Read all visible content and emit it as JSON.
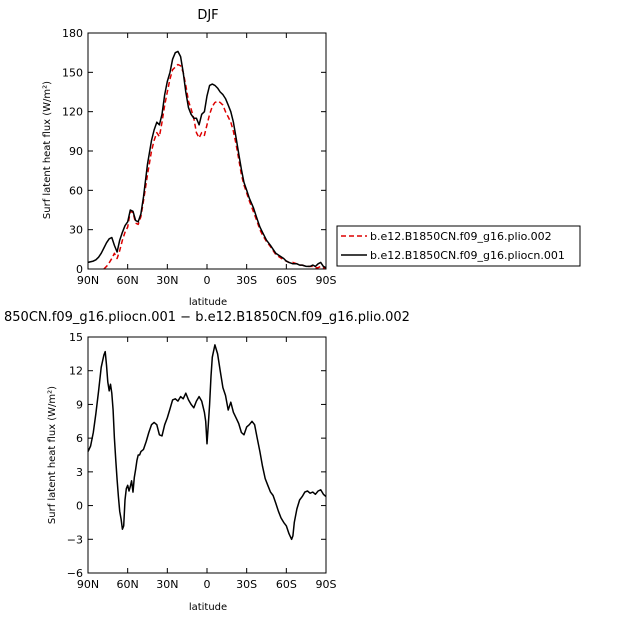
{
  "chart_data": [
    {
      "type": "line",
      "title": "DJF",
      "xlabel": "latitude",
      "ylabel": "Surf latent heat flux (W/m²)",
      "xlim": [
        90,
        -90
      ],
      "ylim": [
        0,
        180
      ],
      "xticks": [
        90,
        60,
        30,
        0,
        -30,
        -60,
        -90
      ],
      "xtick_labels": [
        "90N",
        "60N",
        "30N",
        "0",
        "30S",
        "60S",
        "90S"
      ],
      "yticks": [
        0,
        30,
        60,
        90,
        120,
        150,
        180
      ],
      "ytick_labels": [
        "0",
        "30",
        "60",
        "90",
        "120",
        "150",
        "180"
      ],
      "legend_position": "right",
      "series": [
        {
          "name": "b.e12.B1850CN.f09_g16.plio.002",
          "color": "#dd0000",
          "dash": "dashed",
          "x": [
            78,
            75,
            72,
            70,
            68,
            66,
            64,
            62,
            60,
            58,
            56,
            54,
            52,
            50,
            48,
            45,
            42,
            40,
            38,
            36,
            34,
            32,
            30,
            28,
            26,
            24,
            22,
            20,
            18,
            16,
            14,
            12,
            10,
            8,
            6,
            4,
            2,
            0,
            -2,
            -4,
            -6,
            -8,
            -10,
            -12,
            -14,
            -16,
            -18,
            -20,
            -22,
            -24,
            -26,
            -28,
            -30,
            -32,
            -35,
            -38,
            -40,
            -42,
            -45,
            -48,
            -50,
            -52,
            -55,
            -58,
            -60,
            -62,
            -65,
            -68,
            -70,
            -72,
            -75,
            -78,
            -80,
            -82,
            -84,
            -86,
            -88,
            -90
          ],
          "values": [
            0,
            3,
            8,
            12,
            8,
            14,
            22,
            28,
            32,
            44,
            43,
            35,
            34,
            40,
            52,
            72,
            90,
            98,
            104,
            101,
            112,
            125,
            135,
            145,
            152,
            154,
            156,
            155,
            150,
            140,
            128,
            122,
            115,
            104,
            100,
            104,
            102,
            110,
            118,
            124,
            127,
            128,
            127,
            125,
            120,
            116,
            112,
            105,
            95,
            84,
            72,
            64,
            58,
            52,
            44,
            36,
            30,
            26,
            21,
            17,
            14,
            11,
            9,
            7,
            6,
            5,
            5,
            4,
            3,
            3,
            2,
            2,
            2,
            1,
            1,
            2,
            1,
            0
          ]
        },
        {
          "name": "b.e12.B1850CN.f09_g16.pliocn.001",
          "color": "#000000",
          "dash": "solid",
          "x": [
            90,
            86,
            84,
            82,
            80,
            78,
            76,
            74,
            72,
            70,
            68,
            66,
            64,
            62,
            60,
            58,
            56,
            54,
            52,
            50,
            48,
            45,
            42,
            40,
            38,
            36,
            34,
            32,
            30,
            28,
            26,
            24,
            22,
            20,
            18,
            16,
            14,
            12,
            10,
            8,
            6,
            4,
            2,
            0,
            -2,
            -4,
            -6,
            -8,
            -10,
            -12,
            -14,
            -16,
            -18,
            -20,
            -22,
            -24,
            -26,
            -28,
            -30,
            -32,
            -35,
            -38,
            -40,
            -42,
            -45,
            -48,
            -50,
            -52,
            -55,
            -58,
            -60,
            -62,
            -65,
            -68,
            -70,
            -72,
            -75,
            -78,
            -80,
            -82,
            -84,
            -86,
            -88,
            -90
          ],
          "values": [
            5,
            6,
            7,
            9,
            12,
            16,
            20,
            23,
            24,
            18,
            13,
            22,
            28,
            33,
            36,
            45,
            44,
            37,
            36,
            42,
            55,
            80,
            98,
            106,
            112,
            110,
            118,
            133,
            143,
            150,
            160,
            165,
            166,
            162,
            150,
            135,
            123,
            118,
            115,
            115,
            110,
            118,
            120,
            132,
            140,
            141,
            140,
            138,
            135,
            133,
            130,
            125,
            120,
            112,
            100,
            88,
            76,
            66,
            60,
            54,
            47,
            38,
            32,
            28,
            22,
            18,
            15,
            12,
            10,
            8,
            6,
            5,
            4,
            4,
            3,
            3,
            2,
            2,
            3,
            2,
            4,
            5,
            2,
            1
          ]
        }
      ]
    },
    {
      "type": "line",
      "title": "850CN.f09_g16.pliocn.001 − b.e12.B1850CN.f09_g16.plio.002",
      "xlabel": "latitude",
      "ylabel": "Surf latent heat flux (W/m²)",
      "xlim": [
        90,
        -90
      ],
      "ylim": [
        -6,
        15
      ],
      "xticks": [
        90,
        60,
        30,
        0,
        -30,
        -60,
        -90
      ],
      "xtick_labels": [
        "90N",
        "60N",
        "30N",
        "0",
        "30S",
        "60S",
        "90S"
      ],
      "yticks": [
        -6,
        -3,
        0,
        3,
        6,
        9,
        12,
        15
      ],
      "ytick_labels": [
        "−6",
        "−3",
        "0",
        "3",
        "6",
        "9",
        "12",
        "15"
      ],
      "series": [
        {
          "color": "#000000",
          "dash": "solid",
          "x": [
            90,
            88,
            86,
            84,
            82,
            80,
            78,
            77,
            76,
            75,
            74,
            73,
            72,
            71,
            70,
            69,
            68,
            67,
            66,
            65,
            64,
            63,
            62,
            61,
            60,
            59,
            58,
            57,
            56,
            55,
            54,
            53,
            52,
            51,
            50,
            48,
            46,
            44,
            42,
            40,
            38,
            36,
            34,
            32,
            30,
            28,
            26,
            24,
            22,
            20,
            18,
            16,
            14,
            12,
            10,
            8,
            6,
            4,
            2,
            1,
            0,
            -1,
            -2,
            -3,
            -4,
            -6,
            -8,
            -10,
            -12,
            -14,
            -16,
            -18,
            -20,
            -22,
            -24,
            -26,
            -28,
            -30,
            -32,
            -34,
            -36,
            -38,
            -40,
            -42,
            -44,
            -46,
            -48,
            -50,
            -52,
            -54,
            -56,
            -58,
            -60,
            -62,
            -64,
            -65,
            -66,
            -68,
            -70,
            -72,
            -74,
            -76,
            -78,
            -80,
            -82,
            -84,
            -86,
            -88,
            -90
          ],
          "values": [
            4.8,
            5.3,
            6.5,
            8.2,
            10.2,
            12.3,
            13.4,
            13.7,
            12.5,
            11.0,
            10.2,
            10.8,
            10.0,
            8.5,
            6.0,
            4.0,
            2.3,
            0.8,
            -0.5,
            -1.2,
            -2.1,
            -1.8,
            0.5,
            1.5,
            1.8,
            1.3,
            1.7,
            2.2,
            1.2,
            2.5,
            3.2,
            4.0,
            4.5,
            4.5,
            4.8,
            5.0,
            5.7,
            6.5,
            7.2,
            7.4,
            7.2,
            6.3,
            6.2,
            7.2,
            7.8,
            8.6,
            9.4,
            9.5,
            9.3,
            9.7,
            9.5,
            10.0,
            9.4,
            9.0,
            8.7,
            9.3,
            9.7,
            9.3,
            8.3,
            7.5,
            5.5,
            7.2,
            9.0,
            11.5,
            13.2,
            14.3,
            13.5,
            12.0,
            10.5,
            9.8,
            8.5,
            9.2,
            8.3,
            7.8,
            7.3,
            6.5,
            6.3,
            7.0,
            7.2,
            7.5,
            7.2,
            6.0,
            4.8,
            3.5,
            2.4,
            1.8,
            1.2,
            0.9,
            0.2,
            -0.5,
            -1.1,
            -1.5,
            -1.8,
            -2.5,
            -3.0,
            -2.7,
            -1.5,
            -0.3,
            0.5,
            0.8,
            1.2,
            1.3,
            1.1,
            1.2,
            1.0,
            1.3,
            1.4,
            1.0,
            0.8
          ]
        }
      ]
    }
  ]
}
